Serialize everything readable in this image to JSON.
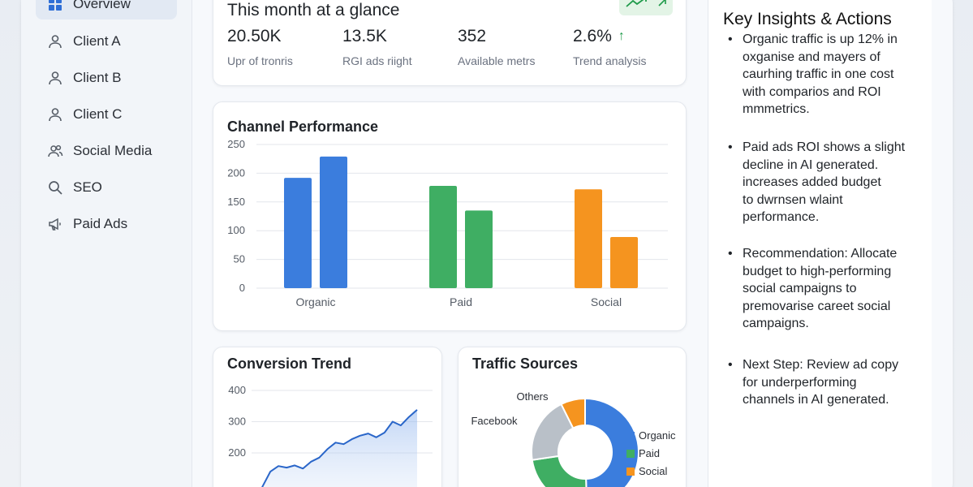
{
  "sidebar": {
    "items": [
      {
        "label": "Overview",
        "icon": "grid-icon",
        "active": true
      },
      {
        "label": "Client A",
        "icon": "user-icon"
      },
      {
        "label": "Client B",
        "icon": "user-icon"
      },
      {
        "label": "Client C",
        "icon": "user-icon"
      },
      {
        "label": "Social Media",
        "icon": "users-icon"
      },
      {
        "label": "SEO",
        "icon": "search-icon"
      },
      {
        "label": "Paid Ads",
        "icon": "megaphone-icon"
      }
    ]
  },
  "glance": {
    "title": "This month at a glance",
    "stats": [
      {
        "value": "20.50K",
        "label": "Upr of tronris"
      },
      {
        "value": "13.5K",
        "label": "RGI ads riight"
      },
      {
        "value": "352",
        "label": "Available metrs"
      },
      {
        "value": "2.6%",
        "label": "Trend analysis",
        "arrow": "↑"
      }
    ]
  },
  "channel": {
    "title": "Channel Performance"
  },
  "conversion": {
    "title": "Conversion Trend"
  },
  "traffic": {
    "title": "Traffic Sources",
    "labels": {
      "others": "Others",
      "facebook": "Facebook"
    },
    "legend": [
      "Organic",
      "Paid",
      "Social"
    ]
  },
  "insights": {
    "title": "Key Insights & Actions",
    "items": [
      {
        "lines": [
          "Organic traffic is up 12% in",
          "oxganise and mayers of",
          "caurhing traffic in one cost",
          "with comparios and ROI",
          "mmmetrics."
        ]
      },
      {
        "lines": [
          "Paid ads ROI shows a slight",
          "decline in AI generated.",
          "increases added budget",
          "to dwrnsen wlaint",
          "performance."
        ]
      },
      {
        "lines": [
          "Recommendation: Allocate",
          "budget to high-performing",
          "social campaigns to",
          "premovarise careet social",
          "campaigns."
        ]
      },
      {
        "lines": [
          "Next Step: Review ad copy",
          "for underperforming",
          "channels in AI generated."
        ]
      }
    ]
  },
  "colors": {
    "blue": "#3b7ddd",
    "green": "#3fae63",
    "orange": "#f5941f",
    "gray": "#b9c0c8",
    "accent_green": "#1e9a49"
  },
  "chart_data": [
    {
      "type": "bar",
      "title": "Channel Performance",
      "categories": [
        "Organic",
        "Paid",
        "Social"
      ],
      "series": [
        {
          "values": [
            192,
            178,
            172
          ]
        },
        {
          "values": [
            229,
            135,
            89
          ]
        }
      ],
      "yticks": [
        0,
        50,
        100,
        150,
        200,
        250
      ],
      "ylim": [
        0,
        250
      ],
      "grid": true
    },
    {
      "type": "area",
      "title": "Conversion Trend",
      "yticks": [
        200,
        300,
        400
      ],
      "y": [
        90,
        140,
        158,
        153,
        160,
        150,
        172,
        185,
        212,
        233,
        228,
        244,
        255,
        262,
        250,
        265,
        300,
        288,
        315,
        338
      ],
      "grid": true
    },
    {
      "type": "pie",
      "title": "Traffic Sources",
      "slices": [
        {
          "name": "Organic",
          "value": 47
        },
        {
          "name": "Paid",
          "value": 22
        },
        {
          "name": "Facebook",
          "value": 19
        },
        {
          "name": "Others",
          "value": 7
        }
      ]
    }
  ]
}
